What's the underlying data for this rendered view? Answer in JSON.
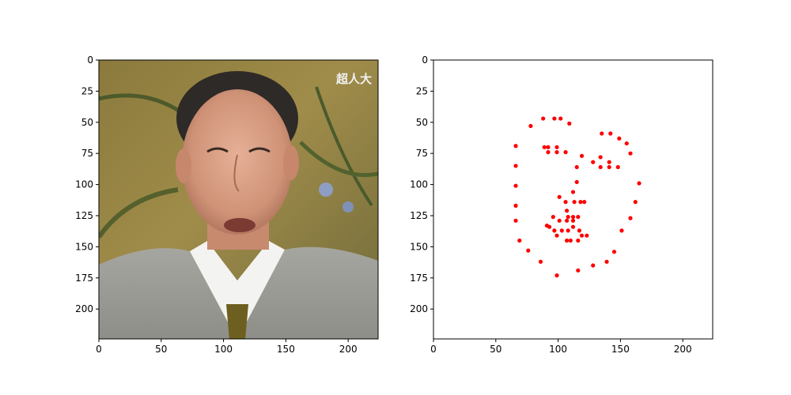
{
  "figure": {
    "photo_panel": {
      "ticks_x": [
        0,
        50,
        100,
        150,
        200
      ],
      "ticks_y": [
        0,
        25,
        50,
        75,
        100,
        125,
        150,
        175,
        200
      ],
      "xlim": [
        0,
        224
      ],
      "ylim": [
        224,
        0
      ],
      "caption_in_image": "超人大",
      "icon": "portrait-photo-icon"
    }
  },
  "chart_data": {
    "type": "scatter",
    "title": "",
    "xlabel": "",
    "ylabel": "",
    "xlim": [
      0,
      224
    ],
    "ylim": [
      224,
      0
    ],
    "y_inverted": true,
    "grid": false,
    "marker_color": "#ff0000",
    "ticks_x": [
      0,
      50,
      100,
      150,
      200
    ],
    "ticks_y": [
      0,
      25,
      50,
      75,
      100,
      125,
      150,
      175,
      200
    ],
    "points": [
      [
        66,
        69
      ],
      [
        66,
        85
      ],
      [
        66,
        101
      ],
      [
        66,
        117
      ],
      [
        66,
        129
      ],
      [
        69,
        145
      ],
      [
        76,
        153
      ],
      [
        86,
        162
      ],
      [
        99,
        173
      ],
      [
        116,
        169
      ],
      [
        128,
        165
      ],
      [
        139,
        162
      ],
      [
        145,
        154
      ],
      [
        151,
        137
      ],
      [
        158,
        127
      ],
      [
        162,
        114
      ],
      [
        165,
        99
      ],
      [
        158,
        75
      ],
      [
        155,
        67
      ],
      [
        149,
        63
      ],
      [
        142,
        59
      ],
      [
        135,
        59
      ],
      [
        134,
        78
      ],
      [
        134,
        86
      ],
      [
        141,
        82
      ],
      [
        141,
        86
      ],
      [
        148,
        86
      ],
      [
        128,
        82
      ],
      [
        119,
        77
      ],
      [
        115,
        86
      ],
      [
        78,
        53
      ],
      [
        88,
        47
      ],
      [
        97,
        47
      ],
      [
        102,
        47
      ],
      [
        109,
        51
      ],
      [
        89,
        70
      ],
      [
        92,
        70
      ],
      [
        92,
        74
      ],
      [
        99,
        70
      ],
      [
        99,
        74
      ],
      [
        106,
        74
      ],
      [
        115,
        98
      ],
      [
        112,
        106
      ],
      [
        101,
        110
      ],
      [
        106,
        114
      ],
      [
        113,
        114
      ],
      [
        118,
        114
      ],
      [
        121,
        114
      ],
      [
        107,
        121
      ],
      [
        108,
        126
      ],
      [
        112,
        126
      ],
      [
        116,
        126
      ],
      [
        96,
        126
      ],
      [
        101,
        129
      ],
      [
        107,
        129
      ],
      [
        112,
        129
      ],
      [
        91,
        133
      ],
      [
        93,
        134
      ],
      [
        97,
        137
      ],
      [
        103,
        137
      ],
      [
        108,
        137
      ],
      [
        112,
        134
      ],
      [
        117,
        137
      ],
      [
        99,
        141
      ],
      [
        119,
        141
      ],
      [
        123,
        141
      ],
      [
        107,
        145
      ],
      [
        110,
        145
      ],
      [
        116,
        145
      ]
    ]
  }
}
